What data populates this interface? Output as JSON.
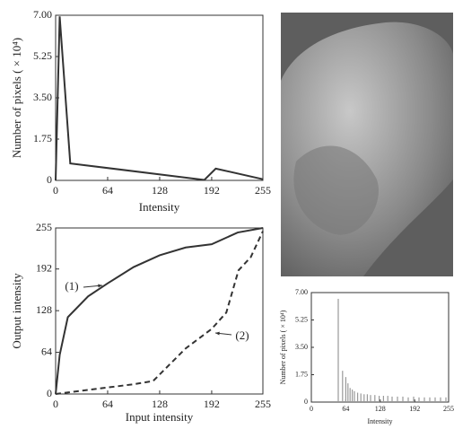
{
  "chart_data": [
    {
      "type": "line",
      "xlabel": "Intensity",
      "ylabel": "Number of pixels ( × 10⁴)",
      "xlim": [
        0,
        255
      ],
      "ylim": [
        0,
        7
      ],
      "xticks": [
        0,
        64,
        128,
        192,
        255
      ],
      "yticks": [
        0,
        1.75,
        {
          "value": 3.5,
          "label": "3.50"
        },
        5.25,
        {
          "value": 7,
          "label": "7.00"
        }
      ],
      "series": [
        {
          "color": "#333333",
          "linestyle": "solid",
          "x": [
            0,
            5,
            18,
            183,
            197,
            255
          ],
          "values": [
            0,
            6.95,
            0.72,
            0.02,
            0.5,
            0.05
          ]
        }
      ]
    },
    {
      "type": "line",
      "xlabel": "Input intensity",
      "ylabel": "Output intensity",
      "xlim": [
        0,
        255
      ],
      "ylim": [
        0,
        255
      ],
      "xticks": [
        0,
        64,
        128,
        192,
        255
      ],
      "yticks": [
        0,
        64,
        128,
        192,
        255
      ],
      "series": [
        {
          "name": "(1)",
          "color": "#333333",
          "linestyle": "solid",
          "x": [
            0,
            5,
            15,
            40,
            64,
            96,
            128,
            160,
            192,
            224,
            255
          ],
          "values": [
            0,
            60,
            118,
            150,
            170,
            195,
            213,
            225,
            230,
            248,
            255
          ]
        },
        {
          "name": "(2)",
          "color": "#333333",
          "linestyle": "dashed",
          "x": [
            0,
            32,
            64,
            96,
            120,
            140,
            160,
            192,
            210,
            225,
            240,
            255
          ],
          "values": [
            0,
            5,
            10,
            15,
            20,
            45,
            70,
            100,
            125,
            190,
            210,
            250
          ]
        }
      ]
    },
    {
      "type": "bar",
      "xlabel": "Intensity",
      "ylabel": "Number of pixels ( × 10⁴)",
      "color": "#999999",
      "xlim": [
        0,
        255
      ],
      "ylim": [
        0,
        7
      ],
      "xticks": [
        0,
        64,
        128,
        192,
        255
      ],
      "yticks": [
        0,
        1.75,
        {
          "value": 3.5,
          "label": "3.50"
        },
        5.25,
        {
          "value": 7,
          "label": "7.00"
        }
      ],
      "x": [
        50,
        58,
        64,
        68,
        72,
        76,
        80,
        86,
        92,
        98,
        104,
        110,
        118,
        126,
        134,
        142,
        150,
        160,
        170,
        180,
        190,
        200,
        210,
        220,
        230,
        240,
        250
      ],
      "values": [
        6.6,
        2.0,
        1.6,
        1.2,
        0.9,
        0.8,
        0.7,
        0.6,
        0.55,
        0.5,
        0.5,
        0.45,
        0.45,
        0.4,
        0.4,
        0.4,
        0.35,
        0.35,
        0.35,
        0.3,
        0.35,
        0.3,
        0.3,
        0.3,
        0.3,
        0.3,
        0.3
      ]
    }
  ]
}
